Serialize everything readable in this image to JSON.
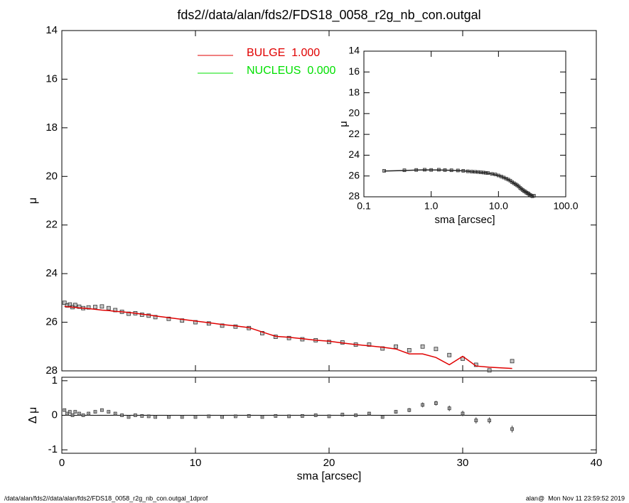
{
  "chart_data": [
    {
      "type": "scatter",
      "title": "fds2//data/alan/fds2/FDS18_0058_r2g_nb_con.outgal",
      "ylabel": "μ",
      "x": [
        0.2,
        0.4,
        0.6,
        0.8,
        1.0,
        1.3,
        1.6,
        2.0,
        2.5,
        3.0,
        3.5,
        4.0,
        4.5,
        5.0,
        5.5,
        6.0,
        6.5,
        7.0,
        8,
        9,
        10,
        11,
        12,
        13,
        14,
        15,
        16,
        17,
        18,
        19,
        20,
        21,
        22,
        23,
        24,
        25,
        26,
        27,
        28,
        29,
        30,
        31,
        32,
        33.7
      ],
      "xlim": [
        0,
        40
      ],
      "xticks": [
        0,
        10,
        20,
        30,
        40
      ],
      "ylim": [
        28,
        14
      ],
      "yticks": [
        14,
        16,
        18,
        20,
        22,
        24,
        26,
        28
      ],
      "series": [
        {
          "style": "marker",
          "color": "#8c8c8c",
          "values": [
            25.2,
            25.31,
            25.27,
            25.38,
            25.29,
            25.36,
            25.42,
            25.39,
            25.37,
            25.35,
            25.42,
            25.5,
            25.57,
            25.65,
            25.63,
            25.69,
            25.73,
            25.79,
            25.86,
            25.93,
            26.0,
            26.05,
            26.14,
            26.18,
            26.24,
            26.45,
            26.6,
            26.65,
            26.7,
            26.74,
            26.81,
            26.83,
            26.92,
            26.92,
            27.08,
            27.0,
            27.15,
            27.0,
            27.1,
            27.35,
            27.5,
            27.75,
            27.98,
            27.6
          ]
        },
        {
          "style": "line",
          "color": "#e00000",
          "values": [
            25.35,
            25.36,
            25.37,
            25.38,
            25.39,
            25.41,
            25.42,
            25.44,
            25.47,
            25.5,
            25.52,
            25.55,
            25.57,
            25.6,
            25.63,
            25.67,
            25.7,
            25.74,
            25.81,
            25.88,
            25.95,
            26.02,
            26.09,
            26.15,
            26.22,
            26.4,
            26.58,
            26.62,
            26.68,
            26.74,
            26.78,
            26.85,
            26.92,
            26.97,
            27.03,
            27.1,
            27.3,
            27.3,
            27.45,
            27.75,
            27.4,
            27.8,
            27.85,
            27.9
          ]
        }
      ],
      "legend": [
        {
          "label": "BULGE  1.000",
          "color": "#e00000"
        },
        {
          "label": "NUCLEUS  0.000",
          "color": "#00e000"
        }
      ]
    },
    {
      "type": "scatter",
      "xlabel": "sma [arcsec]",
      "ylabel": "Δ μ",
      "x": [
        0.2,
        0.4,
        0.6,
        0.8,
        1.0,
        1.3,
        1.6,
        2.0,
        2.5,
        3.0,
        3.5,
        4.0,
        4.5,
        5.0,
        5.5,
        6.0,
        6.5,
        7.0,
        8,
        9,
        10,
        11,
        12,
        13,
        14,
        15,
        16,
        17,
        18,
        19,
        20,
        21,
        22,
        23,
        24,
        25,
        26,
        27,
        28,
        29,
        30,
        31,
        32,
        33.7
      ],
      "xlim": [
        0,
        40
      ],
      "xticks": [
        0,
        10,
        20,
        30,
        40
      ],
      "ylim": [
        -1.1,
        1.1
      ],
      "yticks": [
        -1,
        0,
        1
      ],
      "series": [
        {
          "style": "marker",
          "color": "#8c8c8c",
          "values": [
            0.15,
            0.05,
            0.1,
            0.0,
            0.1,
            0.05,
            0.0,
            0.05,
            0.1,
            0.15,
            0.1,
            0.05,
            0.0,
            -0.05,
            0.0,
            -0.02,
            -0.03,
            -0.05,
            -0.05,
            -0.05,
            -0.05,
            -0.03,
            -0.05,
            -0.03,
            -0.02,
            -0.05,
            -0.02,
            -0.03,
            -0.02,
            0.0,
            -0.03,
            0.02,
            0.0,
            0.05,
            -0.05,
            0.1,
            0.15,
            0.3,
            0.35,
            0.2,
            0.05,
            -0.15,
            -0.15,
            -0.4
          ],
          "errors": [
            0.02,
            0.02,
            0.02,
            0.02,
            0.02,
            0.02,
            0.02,
            0.02,
            0.02,
            0.02,
            0.02,
            0.02,
            0.02,
            0.02,
            0.02,
            0.02,
            0.02,
            0.02,
            0.02,
            0.02,
            0.02,
            0.02,
            0.02,
            0.02,
            0.02,
            0.02,
            0.03,
            0.03,
            0.03,
            0.03,
            0.03,
            0.03,
            0.03,
            0.04,
            0.04,
            0.05,
            0.06,
            0.07,
            0.07,
            0.08,
            0.08,
            0.09,
            0.09,
            0.1
          ]
        }
      ]
    },
    {
      "type": "scatter",
      "xlabel": "sma [arcsec]",
      "ylabel": "μ",
      "xlog": true,
      "x": [
        0.2,
        0.4,
        0.6,
        0.8,
        1.0,
        1.3,
        1.6,
        2.0,
        2.5,
        3.0,
        3.5,
        4.0,
        4.5,
        5.0,
        5.5,
        6.0,
        6.5,
        7.0,
        8,
        9,
        10,
        11,
        12,
        13,
        14,
        15,
        16,
        17,
        18,
        19,
        20,
        21,
        22,
        23,
        24,
        25,
        26,
        27,
        28,
        29,
        30,
        31,
        32,
        33.7
      ],
      "xlim": [
        0.1,
        100
      ],
      "xticks": [
        0.1,
        {
          "value": 1,
          "label": "1.0"
        },
        {
          "value": 10,
          "label": "10.0"
        },
        {
          "value": 100,
          "label": "100.0"
        }
      ],
      "ylim": [
        28,
        14
      ],
      "yticks": [
        14,
        16,
        18,
        20,
        22,
        24,
        26,
        28
      ],
      "series": [
        {
          "style": "marker",
          "color": "#666666",
          "values": [
            25.5,
            25.45,
            25.42,
            25.4,
            25.42,
            25.4,
            25.43,
            25.45,
            25.47,
            25.5,
            25.55,
            25.58,
            25.6,
            25.62,
            25.65,
            25.67,
            25.7,
            25.72,
            25.8,
            25.85,
            25.95,
            26.05,
            26.15,
            26.25,
            26.35,
            26.45,
            26.6,
            26.7,
            26.8,
            26.9,
            27.0,
            27.15,
            27.25,
            27.35,
            27.45,
            27.5,
            27.6,
            27.65,
            27.7,
            27.8,
            27.85,
            27.9,
            27.95,
            27.9
          ]
        },
        {
          "style": "line",
          "color": "#222222",
          "values": [
            25.52,
            25.47,
            25.43,
            25.41,
            25.42,
            25.42,
            25.44,
            25.46,
            25.48,
            25.51,
            25.55,
            25.58,
            25.6,
            25.63,
            25.65,
            25.68,
            25.7,
            25.73,
            25.8,
            25.87,
            25.96,
            26.05,
            26.15,
            26.25,
            26.35,
            26.47,
            26.6,
            26.7,
            26.8,
            26.9,
            27.0,
            27.13,
            27.24,
            27.34,
            27.43,
            27.5,
            27.58,
            27.64,
            27.7,
            27.78,
            27.84,
            27.88,
            27.93,
            27.95
          ]
        }
      ]
    }
  ],
  "footer": {
    "left": "/data/alan/fds2//data/alan/fds2/FDS18_0058_r2g_nb_con.outgal_1dprof",
    "right": "alan@  Mon Nov 11 23:59:52 2019"
  }
}
